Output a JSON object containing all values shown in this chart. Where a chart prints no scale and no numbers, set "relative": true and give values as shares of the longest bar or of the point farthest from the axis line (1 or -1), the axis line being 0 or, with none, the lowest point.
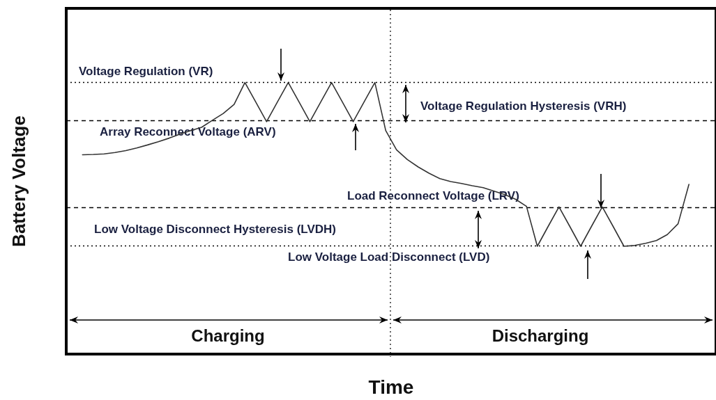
{
  "chart_data": {
    "type": "line",
    "xlabel": "Time",
    "ylabel": "Battery Voltage",
    "relative": true,
    "marker": "none",
    "line_style": "solid",
    "categories": [
      null,
      null,
      null,
      null,
      null,
      null,
      null,
      null,
      null,
      null,
      null,
      null,
      null,
      null,
      null,
      null,
      null,
      null,
      null,
      null,
      null,
      null,
      null,
      null,
      null,
      null,
      null,
      null,
      null,
      null,
      null,
      null,
      null,
      null,
      null,
      null,
      null,
      null,
      null,
      null,
      null,
      null,
      null,
      null,
      null,
      null,
      null,
      null,
      null,
      null,
      null,
      null,
      null,
      null,
      null,
      null,
      null,
      null,
      null,
      null
    ],
    "series": [
      {
        "color": "#333333",
        "values": [
          null,
          0.734,
          0.735,
          0.737,
          0.742,
          0.749,
          0.759,
          0.77,
          0.782,
          0.795,
          0.81,
          0.823,
          0.835,
          0.861,
          0.886,
          0.919,
          1,
          0.928,
          0.856,
          0.928,
          1,
          0.928,
          0.856,
          0.928,
          1,
          0.928,
          0.856,
          0.928,
          1,
          0.823,
          0.752,
          0.716,
          0.689,
          0.666,
          0.646,
          0.635,
          0.628,
          0.62,
          0.613,
          0.6,
          0.587,
          0.57,
          0.544,
          0.397,
          0.47,
          0.542,
          0.47,
          0.397,
          0.47,
          0.542,
          0.47,
          0.397,
          0.4,
          0.408,
          0.418,
          0.44,
          0.48,
          0.625,
          null,
          null
        ]
      }
    ],
    "ref_lines": [
      {
        "axis": "y",
        "value": 1,
        "label": "Voltage Regulation (VR)",
        "color": "#000000",
        "line_style": "dotted"
      },
      {
        "axis": "y",
        "value": 0.856,
        "label": "Array Reconnect Voltage (ARV)",
        "color": "#000000",
        "line_style": "dashed"
      },
      {
        "axis": "y",
        "value": 0.542,
        "label": "Load Reconnect Voltage (LRV)",
        "color": "#000000",
        "line_style": "dashed"
      },
      {
        "axis": "y",
        "value": 0.397,
        "label": "Low Voltage Load Disconnect (LVD)",
        "color": "#000000",
        "line_style": "dotted"
      }
    ],
    "annotations": [
      "Voltage Regulation Hysteresis (VRH)",
      "Low Voltage Disconnect Hysteresis (LVDH)",
      "Charging",
      "Discharging"
    ]
  }
}
